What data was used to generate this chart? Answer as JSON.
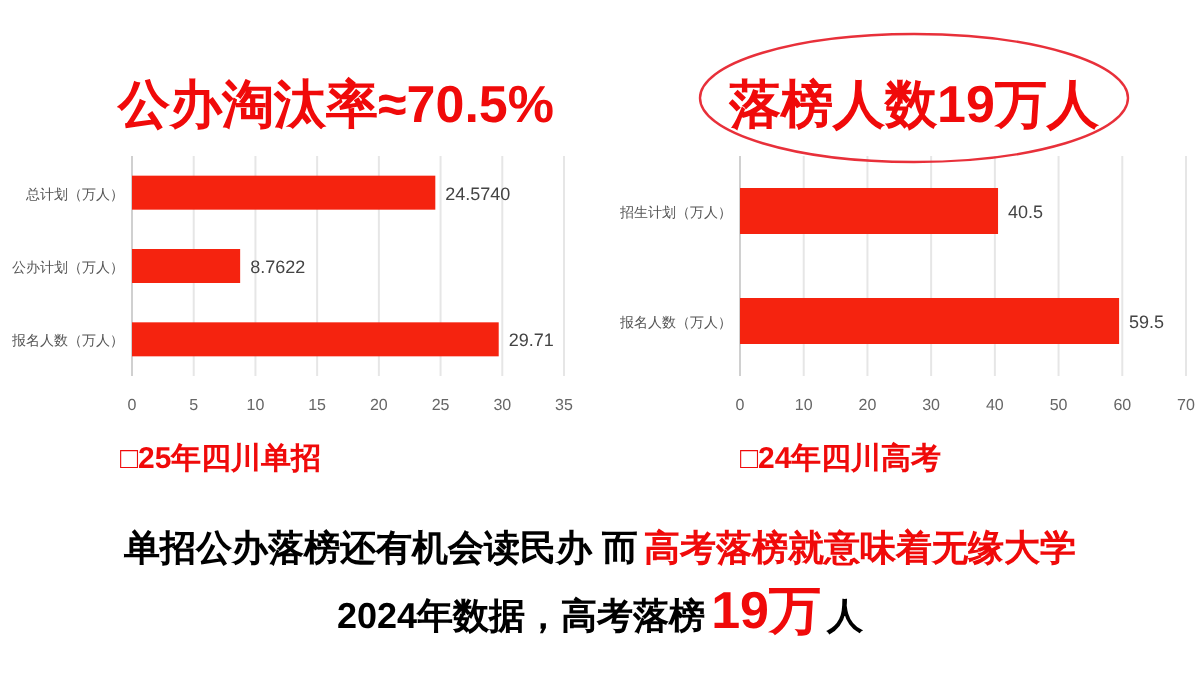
{
  "chart_data": [
    {
      "type": "bar",
      "orientation": "horizontal",
      "title": "公办淘汰率≈70.5%",
      "categories": [
        "总计划（万人）",
        "公办计划（万人）",
        "报名人数（万人）"
      ],
      "values": [
        24.574,
        8.7622,
        29.71
      ],
      "value_labels": [
        "24.5740",
        "8.7622",
        "29.71"
      ],
      "color": "#f5230f",
      "xlim": [
        0,
        35
      ],
      "xticks": [
        0,
        5,
        10,
        15,
        20,
        25,
        30,
        35
      ],
      "grid": "x",
      "annotations": [
        "□25年四川单招"
      ]
    },
    {
      "type": "bar",
      "orientation": "horizontal",
      "title": "落榜人数19万人",
      "categories": [
        "招生计划（万人）",
        "报名人数（万人）"
      ],
      "values": [
        40.5,
        59.5
      ],
      "data_labels": true,
      "color": "#f5230f",
      "xlim": [
        0,
        70
      ],
      "xticks": [
        0,
        10,
        20,
        30,
        40,
        50,
        60,
        70
      ],
      "grid": "x",
      "annotations": [
        "□24年四川高考",
        "单招公办落榜还有机会读民办 而",
        "高考落榜就意味着无缘大学",
        "2024年数据，高考落榜",
        "19万",
        "人"
      ]
    }
  ]
}
